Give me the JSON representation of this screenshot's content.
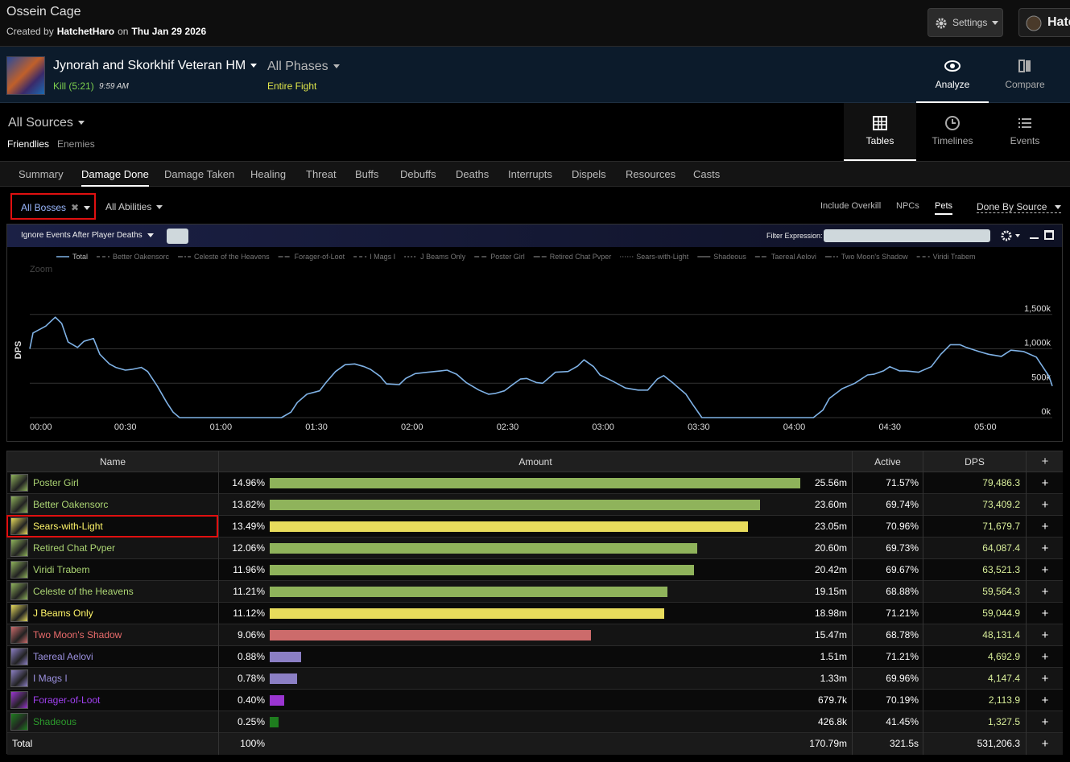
{
  "header": {
    "title": "Ossein Cage",
    "created_by": "Created by",
    "author": "HatchetHaro",
    "on": "on",
    "date": "Thu Jan 29 2026",
    "settings": "Settings",
    "user": "Hatc"
  },
  "fight": {
    "name": "Jynorah and Skorkhif Veteran HM",
    "result": "Kill (5:21)",
    "time": "9:59 AM",
    "phases": "All Phases",
    "phase": "Entire Fight",
    "modes": [
      "Analyze",
      "Compare"
    ]
  },
  "sources": {
    "selector": "All Sources",
    "groups": [
      "Friendlies",
      "Enemies"
    ],
    "views": [
      "Tables",
      "Timelines",
      "Events"
    ]
  },
  "tabs": [
    "Summary",
    "Damage Done",
    "Damage Taken",
    "Healing",
    "Threat",
    "Buffs",
    "Debuffs",
    "Deaths",
    "Interrupts",
    "Dispels",
    "Resources",
    "Casts"
  ],
  "filters": {
    "target": "All Bosses",
    "abilities": "All Abilities",
    "options": [
      "Include Overkill",
      "NPCs",
      "Pets",
      "Done By Source"
    ]
  },
  "toolbar": {
    "ignore": "Ignore Events After Player Deaths",
    "filter_label": "Filter Expression:"
  },
  "chart_data": {
    "type": "line",
    "zoom": "Zoom",
    "ylabel": "DPS",
    "grid": true,
    "x": [
      0,
      1,
      5,
      8,
      10,
      12,
      15,
      17,
      20,
      22,
      25,
      27,
      30,
      32,
      35,
      37,
      40,
      43,
      45,
      47,
      79,
      82,
      84,
      87,
      91,
      93,
      96,
      99,
      102,
      105,
      107,
      110,
      112,
      116,
      118,
      121,
      125,
      129,
      131,
      134,
      137,
      141,
      144,
      146,
      149,
      151,
      154,
      156,
      159,
      161,
      165,
      169,
      172,
      174,
      177,
      179,
      183,
      187,
      191,
      194,
      197,
      199,
      202,
      206,
      208,
      211,
      246,
      249,
      251,
      255,
      259,
      263,
      265,
      268,
      270,
      273,
      275,
      279,
      283,
      286,
      289,
      292,
      294,
      298,
      301,
      305,
      308,
      312,
      316,
      320,
      321
    ],
    "series": [
      {
        "name": "Total",
        "color": "#7fb2e6",
        "values": [
          1000000,
          1230000,
          1330000,
          1460000,
          1370000,
          1100000,
          1020000,
          1110000,
          1150000,
          920000,
          780000,
          730000,
          690000,
          700000,
          730000,
          670000,
          460000,
          220000,
          80000,
          0,
          0,
          80000,
          220000,
          340000,
          390000,
          510000,
          670000,
          770000,
          780000,
          740000,
          700000,
          600000,
          490000,
          480000,
          570000,
          640000,
          660000,
          680000,
          690000,
          630000,
          510000,
          400000,
          340000,
          350000,
          390000,
          460000,
          560000,
          570000,
          510000,
          500000,
          660000,
          670000,
          750000,
          840000,
          740000,
          620000,
          530000,
          430000,
          400000,
          400000,
          560000,
          610000,
          500000,
          340000,
          200000,
          0,
          0,
          110000,
          280000,
          420000,
          500000,
          620000,
          630000,
          680000,
          740000,
          680000,
          680000,
          660000,
          740000,
          920000,
          1060000,
          1060000,
          1020000,
          960000,
          920000,
          890000,
          980000,
          960000,
          880000,
          600000,
          460000
        ]
      }
    ],
    "inactive_series": [
      "Better Oakensorc",
      "Celeste of the Heavens",
      "Forager-of-Loot",
      "I Mags I",
      "J Beams Only",
      "Poster Girl",
      "Retired Chat Pvper",
      "Sears-with-Light",
      "Shadeous",
      "Taereal Aelovi",
      "Two Moon's Shadow",
      "Viridi Trabem"
    ],
    "xlim": [
      0,
      321
    ],
    "xticks": [
      {
        "value": 0,
        "label": "00:00"
      },
      {
        "value": 30,
        "label": "00:30"
      },
      {
        "value": 60,
        "label": "01:00"
      },
      {
        "value": 90,
        "label": "01:30"
      },
      {
        "value": 120,
        "label": "02:00"
      },
      {
        "value": 150,
        "label": "02:30"
      },
      {
        "value": 180,
        "label": "03:00"
      },
      {
        "value": 210,
        "label": "03:30"
      },
      {
        "value": 240,
        "label": "04:00"
      },
      {
        "value": 270,
        "label": "04:30"
      },
      {
        "value": 300,
        "label": "05:00"
      }
    ],
    "ylim": [
      0,
      2000000
    ],
    "yticks": [
      {
        "value": 0,
        "label": "0k"
      },
      {
        "value": 500000,
        "label": "500k"
      },
      {
        "value": 1000000,
        "label": "1,000k"
      },
      {
        "value": 1500000,
        "label": "1,500k"
      }
    ]
  },
  "table": {
    "columns": [
      "Name",
      "Amount",
      "Active",
      "DPS",
      "+"
    ],
    "rows": [
      {
        "name": "Poster Girl",
        "color": "#abd473",
        "bar_color": "#8fb35b",
        "share": 14.96,
        "share_label": "14.96%",
        "amount": "25.56m",
        "active": "71.57%",
        "dps": "79,486.3"
      },
      {
        "name": "Better Oakensorc",
        "color": "#abd473",
        "bar_color": "#8fb35b",
        "share": 13.82,
        "share_label": "13.82%",
        "amount": "23.60m",
        "active": "69.74%",
        "dps": "73,409.2"
      },
      {
        "name": "Sears-with-Light",
        "color": "#fff569",
        "bar_color": "#e8dc5c",
        "share": 13.49,
        "share_label": "13.49%",
        "amount": "23.05m",
        "active": "70.96%",
        "dps": "71,679.7"
      },
      {
        "name": "Retired Chat Pvper",
        "color": "#abd473",
        "bar_color": "#8fb35b",
        "share": 12.06,
        "share_label": "12.06%",
        "amount": "20.60m",
        "active": "69.73%",
        "dps": "64,087.4"
      },
      {
        "name": "Viridi Trabem",
        "color": "#abd473",
        "bar_color": "#8fb35b",
        "share": 11.96,
        "share_label": "11.96%",
        "amount": "20.42m",
        "active": "69.67%",
        "dps": "63,521.3"
      },
      {
        "name": "Celeste of the Heavens",
        "color": "#abd473",
        "bar_color": "#8fb35b",
        "share": 11.21,
        "share_label": "11.21%",
        "amount": "19.15m",
        "active": "68.88%",
        "dps": "59,564.3"
      },
      {
        "name": "J Beams Only",
        "color": "#fff569",
        "bar_color": "#e8dc5c",
        "share": 11.12,
        "share_label": "11.12%",
        "amount": "18.98m",
        "active": "71.21%",
        "dps": "59,044.9"
      },
      {
        "name": "Two Moon's Shadow",
        "color": "#e86b6b",
        "bar_color": "#cc6b6b",
        "share": 9.06,
        "share_label": "9.06%",
        "amount": "15.47m",
        "active": "68.78%",
        "dps": "48,131.4"
      },
      {
        "name": "Taereal Aelovi",
        "color": "#9c91e0",
        "bar_color": "#8b7fc4",
        "share": 0.88,
        "share_label": "0.88%",
        "amount": "1.51m",
        "active": "71.21%",
        "dps": "4,692.9"
      },
      {
        "name": "I Mags I",
        "color": "#9c91e0",
        "bar_color": "#8b7fc4",
        "share": 0.78,
        "share_label": "0.78%",
        "amount": "1.33m",
        "active": "69.96%",
        "dps": "4,147.4"
      },
      {
        "name": "Forager-of-Loot",
        "color": "#a040f0",
        "bar_color": "#9a35d0",
        "share": 0.4,
        "share_label": "0.40%",
        "amount": "679.7k",
        "active": "70.19%",
        "dps": "2,113.9"
      },
      {
        "name": "Shadeous",
        "color": "#2c9a2c",
        "bar_color": "#1e7d1e",
        "share": 0.25,
        "share_label": "0.25%",
        "amount": "426.8k",
        "active": "41.45%",
        "dps": "1,327.5"
      }
    ],
    "total": {
      "label": "Total",
      "share": "100%",
      "amount": "170.79m",
      "active": "321.5s",
      "dps": "531,206.3"
    }
  }
}
